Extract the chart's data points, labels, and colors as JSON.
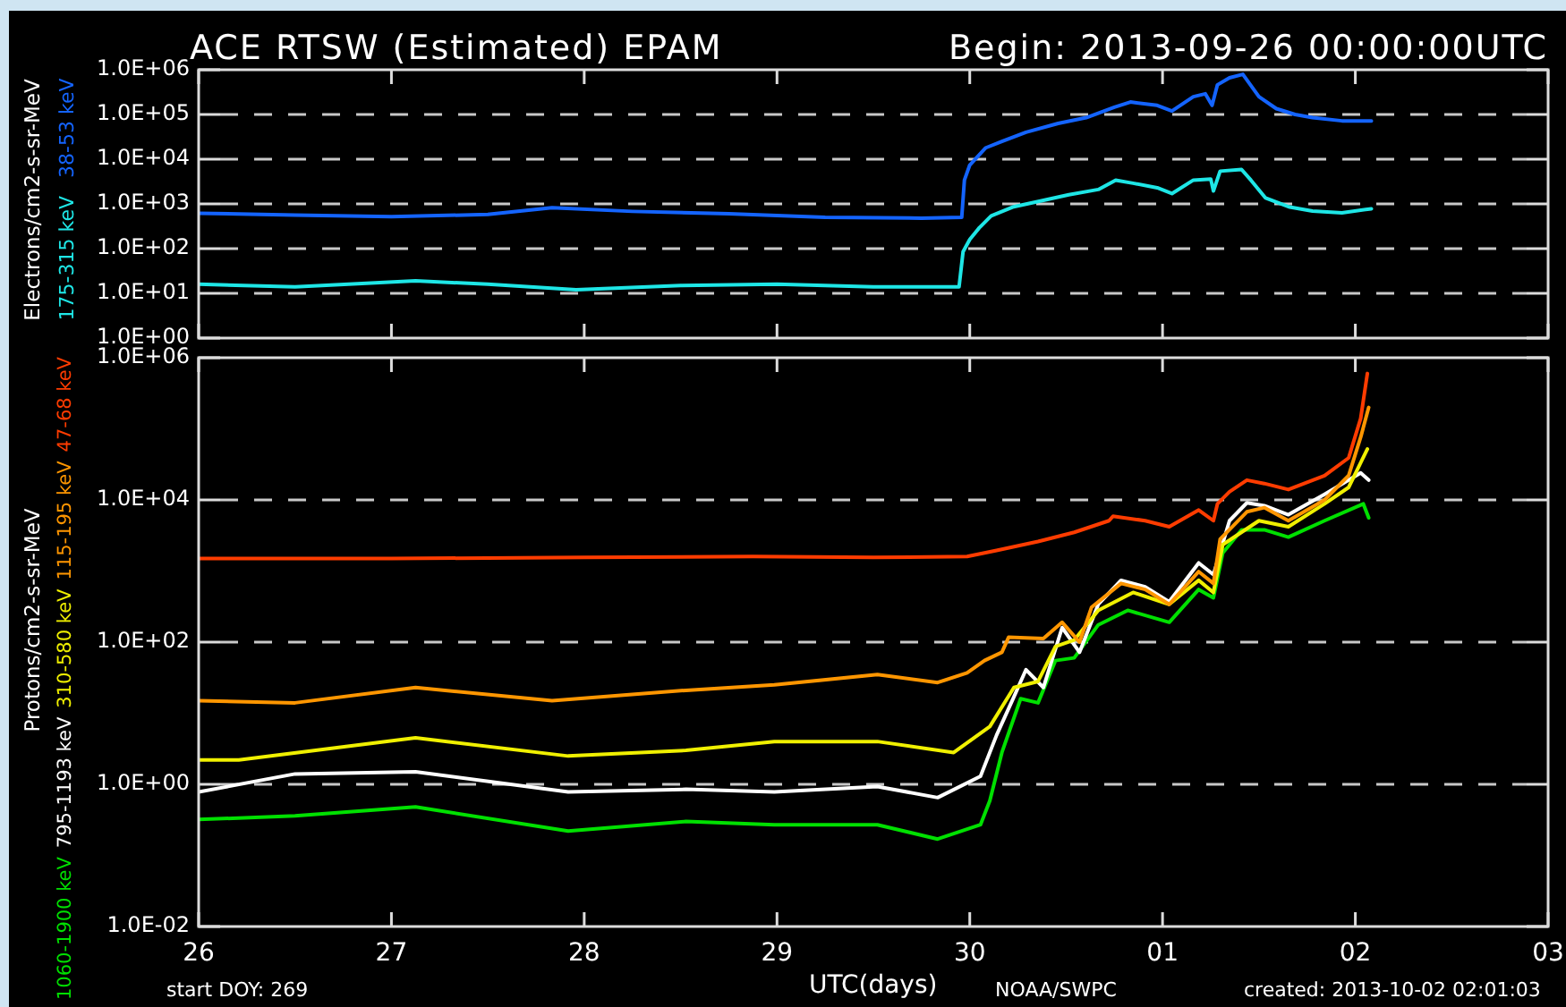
{
  "chart_data": [
    {
      "type": "line",
      "title": "ACE RTSW (Estimated) EPAM",
      "subtitle": "Begin: 2013-09-26 00:00:00UTC",
      "ylabel": "Electrons/cm2-s-sr-MeV",
      "series": [
        {
          "name": "38-53 keV",
          "color": "#1464ff",
          "x": [
            "2013-09-26T00:00",
            "2013-09-26T12:00",
            "2013-09-27T00:00",
            "2013-09-27T12:00",
            "2013-09-27T20:00",
            "2013-09-28T06:00",
            "2013-09-28T18:00",
            "2013-09-29T06:00",
            "2013-09-29T18:00",
            "2013-09-29T23:00",
            "2013-09-29T23:20",
            "2013-09-30T00:00",
            "2013-09-30T02:00",
            "2013-09-30T04:00",
            "2013-09-30T07:00",
            "2013-09-30T11:00",
            "2013-09-30T14:30",
            "2013-09-30T18:00",
            "2013-09-30T20:00",
            "2013-09-30T23:20",
            "2013-10-01T01:10",
            "2013-10-01T03:50",
            "2013-10-01T05:20",
            "2013-10-01T06:10",
            "2013-10-01T06:50",
            "2013-10-01T08:20",
            "2013-10-01T10:00",
            "2013-10-01T12:00",
            "2013-10-01T14:10",
            "2013-10-01T16:30",
            "2013-10-01T18:40",
            "2013-10-01T22:20",
            "2013-10-02T02:00"
          ],
          "values": [
            620,
            560,
            520,
            580,
            820,
            680,
            600,
            500,
            480,
            500,
            3400,
            7400,
            18000,
            25000,
            40000,
            63000,
            85000,
            145000,
            190000,
            160000,
            120000,
            250000,
            290000,
            160000,
            460000,
            660000,
            790000,
            250000,
            135000,
            100000,
            85000,
            72000,
            72000
          ]
        },
        {
          "name": "175-315 keV",
          "color": "#1ee6e6",
          "x": [
            "2013-09-26T00:00",
            "2013-09-26T12:00",
            "2013-09-27T03:00",
            "2013-09-27T12:00",
            "2013-09-27T23:00",
            "2013-09-28T12:00",
            "2013-09-29T00:00",
            "2013-09-29T12:00",
            "2013-09-29T22:40",
            "2013-09-29T23:10",
            "2013-09-30T00:00",
            "2013-09-30T01:10",
            "2013-09-30T02:40",
            "2013-09-30T05:20",
            "2013-09-30T08:40",
            "2013-09-30T12:20",
            "2013-09-30T16:00",
            "2013-09-30T18:10",
            "2013-09-30T20:20",
            "2013-09-30T23:20",
            "2013-10-01T01:10",
            "2013-10-01T03:50",
            "2013-10-01T06:00",
            "2013-10-01T06:20",
            "2013-10-01T07:10",
            "2013-10-01T09:50",
            "2013-10-01T11:00",
            "2013-10-01T12:50",
            "2013-10-01T15:50",
            "2013-10-01T18:40",
            "2013-10-01T22:20",
            "2013-10-02T02:00"
          ],
          "values": [
            16,
            14,
            19,
            16,
            12,
            15,
            16,
            14,
            14,
            85,
            160,
            290,
            540,
            850,
            1150,
            1600,
            2100,
            3400,
            2900,
            2300,
            1700,
            3400,
            3600,
            1950,
            5400,
            5900,
            3400,
            1350,
            850,
            690,
            630,
            780
          ]
        }
      ],
      "xlim": [
        "2013-09-26",
        "2013-10-03"
      ],
      "xticks": [
        {
          "value": "2013-09-26",
          "label": null
        },
        {
          "value": "2013-09-27",
          "label": null
        },
        {
          "value": "2013-09-28",
          "label": null
        },
        {
          "value": "2013-09-29",
          "label": null
        },
        {
          "value": "2013-09-30",
          "label": null
        },
        {
          "value": "2013-10-01",
          "label": null
        },
        {
          "value": "2013-10-02",
          "label": null
        },
        {
          "value": "2013-10-03",
          "label": null
        }
      ],
      "ylim": [
        1,
        1000000
      ],
      "yticks": [
        {
          "value": 1,
          "label": "1.0E+00"
        },
        {
          "value": 10,
          "label": "1.0E+01"
        },
        {
          "value": 100,
          "label": "1.0E+02"
        },
        {
          "value": 1000,
          "label": "1.0E+03"
        },
        {
          "value": 10000,
          "label": "1.0E+04"
        },
        {
          "value": 100000,
          "label": "1.0E+05"
        },
        {
          "value": 1000000,
          "label": "1.0E+06"
        }
      ],
      "log": "y",
      "grid": "y",
      "legend": "left",
      "tick_labels": "y"
    },
    {
      "type": "line",
      "xlabel": "UTC(days)",
      "ylabel": "Protons/cm2-s-sr-MeV",
      "series": [
        {
          "name": "47-68 keV",
          "color": "#ff3c00",
          "x": [
            "2013-09-26T00:00",
            "2013-09-27T00:00",
            "2013-09-28T00:00",
            "2013-09-28T21:00",
            "2013-09-29T12:00",
            "2013-09-29T23:40",
            "2013-09-30T03:20",
            "2013-09-30T08:30",
            "2013-09-30T13:00",
            "2013-09-30T17:20",
            "2013-09-30T17:50",
            "2013-09-30T21:50",
            "2013-10-01T00:50",
            "2013-10-01T04:30",
            "2013-10-01T06:20",
            "2013-10-01T06:50",
            "2013-10-01T08:20",
            "2013-10-01T10:30",
            "2013-10-01T12:40",
            "2013-10-01T15:40",
            "2013-10-01T20:10",
            "2013-10-01T23:10",
            "2013-10-02T00:40",
            "2013-10-02T01:30"
          ],
          "values": [
            1500,
            1500,
            1550,
            1600,
            1550,
            1600,
            1950,
            2600,
            3500,
            5100,
            5900,
            5100,
            4200,
            7200,
            5100,
            8800,
            13000,
            19000,
            17000,
            14000,
            22000,
            39000,
            140000,
            600000
          ]
        },
        {
          "name": "115-195 keV",
          "color": "#ff9600",
          "x": [
            "2013-09-26T00:00",
            "2013-09-26T12:00",
            "2013-09-27T03:00",
            "2013-09-27T20:00",
            "2013-09-28T12:40",
            "2013-09-28T23:40",
            "2013-09-29T12:30",
            "2013-09-29T20:00",
            "2013-09-29T23:40",
            "2013-09-30T01:50",
            "2013-09-30T04:00",
            "2013-09-30T04:50",
            "2013-09-30T09:10",
            "2013-09-30T11:30",
            "2013-09-30T13:40",
            "2013-09-30T15:10",
            "2013-09-30T18:50",
            "2013-09-30T21:50",
            "2013-10-01T00:50",
            "2013-10-01T04:30",
            "2013-10-01T06:20",
            "2013-10-01T07:10",
            "2013-10-01T10:30",
            "2013-10-01T12:40",
            "2013-10-01T15:40",
            "2013-10-01T20:10",
            "2013-10-01T23:10",
            "2013-10-02T00:40",
            "2013-10-02T01:40"
          ],
          "values": [
            15,
            14,
            23,
            15,
            21,
            25,
            35,
            27,
            37,
            55,
            72,
            117,
            112,
            190,
            100,
            310,
            670,
            550,
            340,
            980,
            670,
            2800,
            6800,
            7800,
            5100,
            10000,
            22000,
            76000,
            200000
          ]
        },
        {
          "name": "310-580 keV",
          "color": "#f0f000",
          "x": [
            "2013-09-26T00:00",
            "2013-09-26T05:00",
            "2013-09-27T03:00",
            "2013-09-27T22:00",
            "2013-09-28T12:40",
            "2013-09-28T23:40",
            "2013-09-29T12:30",
            "2013-09-29T22:00",
            "2013-09-30T02:30",
            "2013-09-30T05:30",
            "2013-09-30T08:30",
            "2013-09-30T10:40",
            "2013-09-30T13:00",
            "2013-09-30T16:00",
            "2013-09-30T20:20",
            "2013-10-01T00:50",
            "2013-10-01T04:30",
            "2013-10-01T06:20",
            "2013-10-01T07:30",
            "2013-10-01T12:00",
            "2013-10-01T15:40",
            "2013-10-01T20:10",
            "2013-10-01T23:10",
            "2013-10-02T01:30"
          ],
          "values": [
            2.2,
            2.2,
            4.5,
            2.5,
            3,
            4,
            4,
            2.8,
            6.5,
            23,
            28,
            87,
            107,
            280,
            500,
            340,
            740,
            500,
            2350,
            5100,
            4200,
            8800,
            15000,
            52000
          ]
        },
        {
          "name": "795-1193 keV",
          "color": "#ffffff",
          "x": [
            "2013-09-26T00:00",
            "2013-09-26T12:00",
            "2013-09-27T03:00",
            "2013-09-27T22:00",
            "2013-09-28T12:40",
            "2013-09-28T23:40",
            "2013-09-29T12:30",
            "2013-09-29T20:00",
            "2013-09-30T01:20",
            "2013-09-30T03:20",
            "2013-09-30T05:30",
            "2013-09-30T07:00",
            "2013-09-30T09:10",
            "2013-09-30T11:30",
            "2013-09-30T13:40",
            "2013-09-30T16:00",
            "2013-09-30T18:50",
            "2013-09-30T21:50",
            "2013-10-01T00:50",
            "2013-10-01T04:30",
            "2013-10-01T06:20",
            "2013-10-01T08:20",
            "2013-10-01T10:30",
            "2013-10-01T12:40",
            "2013-10-01T15:40",
            "2013-10-01T20:10",
            "2013-10-02T00:40",
            "2013-10-02T01:40"
          ],
          "values": [
            0.78,
            1.4,
            1.5,
            0.78,
            0.85,
            0.78,
            0.93,
            0.65,
            1.3,
            4.9,
            17,
            41,
            23,
            160,
            72,
            340,
            740,
            600,
            370,
            1300,
            890,
            5100,
            9100,
            8300,
            6200,
            12000,
            24000,
            19000
          ]
        },
        {
          "name": "1060-1900 keV",
          "color": "#00e000",
          "x": [
            "2013-09-26T00:00",
            "2013-09-26T12:00",
            "2013-09-27T03:00",
            "2013-09-27T22:00",
            "2013-09-28T12:40",
            "2013-09-28T23:40",
            "2013-09-29T12:30",
            "2013-09-29T20:00",
            "2013-09-30T01:20",
            "2013-09-30T02:30",
            "2013-09-30T04:00",
            "2013-09-30T06:20",
            "2013-09-30T08:30",
            "2013-09-30T10:40",
            "2013-09-30T13:00",
            "2013-09-30T16:00",
            "2013-09-30T19:40",
            "2013-10-01T00:50",
            "2013-10-01T04:30",
            "2013-10-01T06:20",
            "2013-10-01T07:30",
            "2013-10-01T09:50",
            "2013-10-01T12:40",
            "2013-10-01T15:40",
            "2013-10-01T20:10",
            "2013-10-02T01:00",
            "2013-10-02T01:40"
          ],
          "values": [
            0.32,
            0.36,
            0.48,
            0.22,
            0.3,
            0.27,
            0.27,
            0.17,
            0.27,
            0.59,
            2.8,
            16,
            14,
            55,
            60,
            175,
            280,
            190,
            550,
            420,
            1800,
            3800,
            3800,
            3000,
            5100,
            8800,
            5600
          ]
        }
      ],
      "xlim": [
        "2013-09-26",
        "2013-10-03"
      ],
      "xticks": [
        {
          "value": "2013-09-26",
          "label": "26"
        },
        {
          "value": "2013-09-27",
          "label": "27"
        },
        {
          "value": "2013-09-28",
          "label": "28"
        },
        {
          "value": "2013-09-29",
          "label": "29"
        },
        {
          "value": "2013-09-30",
          "label": "30"
        },
        {
          "value": "2013-10-01",
          "label": "01"
        },
        {
          "value": "2013-10-02",
          "label": "02"
        },
        {
          "value": "2013-10-03",
          "label": "03"
        }
      ],
      "ylim": [
        0.01,
        1000000
      ],
      "yticks": [
        {
          "value": 0.01,
          "label": "1.0E-02"
        },
        {
          "value": 1,
          "label": "1.0E+00"
        },
        {
          "value": 100,
          "label": "1.0E+02"
        },
        {
          "value": 10000,
          "label": "1.0E+04"
        },
        {
          "value": 1000000,
          "label": "1.0E+06"
        }
      ],
      "log": "y",
      "grid": "y",
      "legend": "left",
      "annotations": [
        "start DOY: 269",
        "NOAA/SWPC",
        "created: 2013-10-02 02:01:03"
      ]
    }
  ]
}
